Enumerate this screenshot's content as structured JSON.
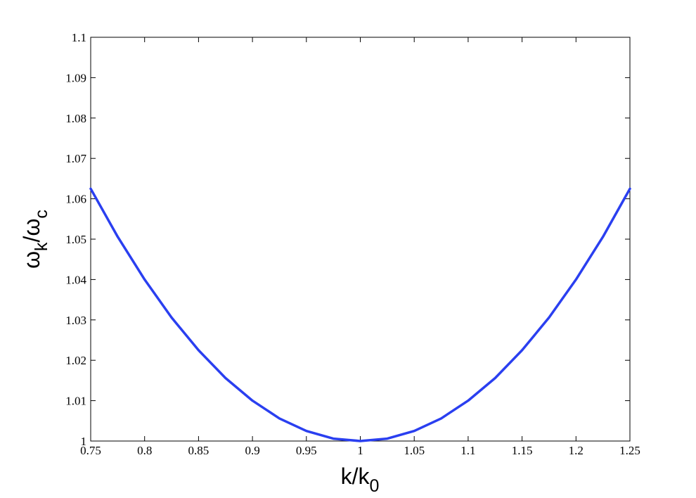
{
  "chart_data": {
    "type": "line",
    "title": "",
    "xlabel_main": "k/k",
    "xlabel_sub": "0",
    "ylabel_main": "ω",
    "ylabel_sub1": "k",
    "ylabel_mid": "/ω",
    "ylabel_sub2": "c",
    "xlim": [
      0.75,
      1.25
    ],
    "ylim": [
      1.0,
      1.1
    ],
    "grid": false,
    "xticks": [
      0.75,
      0.8,
      0.85,
      0.9,
      0.95,
      1,
      1.05,
      1.1,
      1.15,
      1.2,
      1.25
    ],
    "xtick_labels": [
      "0.75",
      "0.8",
      "0.85",
      "0.9",
      "0.95",
      "1",
      "1.05",
      "1.1",
      "1.15",
      "1.2",
      "1.25"
    ],
    "yticks": [
      1,
      1.01,
      1.02,
      1.03,
      1.04,
      1.05,
      1.06,
      1.07,
      1.08,
      1.09,
      1.1
    ],
    "ytick_labels": [
      "1",
      "1.01",
      "1.02",
      "1.03",
      "1.04",
      "1.05",
      "1.06",
      "1.07",
      "1.08",
      "1.09",
      "1.1"
    ],
    "series": [
      {
        "color": "#2a3ff0",
        "x": [
          0.75,
          0.775,
          0.8,
          0.825,
          0.85,
          0.875,
          0.9,
          0.925,
          0.95,
          0.975,
          1.0,
          1.025,
          1.05,
          1.075,
          1.1,
          1.125,
          1.15,
          1.175,
          1.2,
          1.225,
          1.25
        ],
        "y": [
          1.0625,
          1.0506,
          1.04,
          1.0306,
          1.0225,
          1.0156,
          1.01,
          1.0056,
          1.0025,
          1.0006,
          1.0,
          1.0006,
          1.0025,
          1.0056,
          1.01,
          1.0156,
          1.0225,
          1.0306,
          1.04,
          1.0506,
          1.0625
        ]
      }
    ]
  }
}
